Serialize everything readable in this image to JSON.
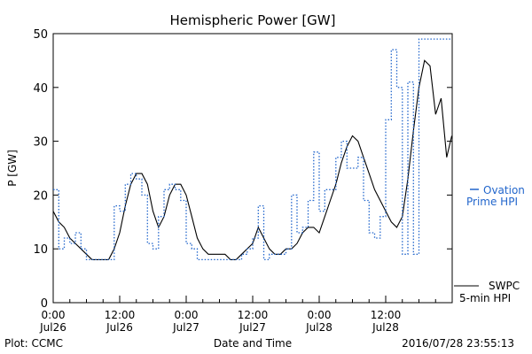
{
  "chart_data": {
    "type": "line",
    "title": "Hemispheric Power [GW]",
    "ylabel": "P [GW]",
    "xlabel": "Date and Time",
    "xlim": [
      "2016-07-26T00:00",
      "2016-07-28T23:55"
    ],
    "ylim": [
      0,
      50
    ],
    "y_ticks": [
      0,
      10,
      20,
      30,
      40,
      50
    ],
    "x_ticks": [
      {
        "time": "2016-07-26T00:00",
        "line1": "0:00",
        "line2": "Jul26"
      },
      {
        "time": "2016-07-26T12:00",
        "line1": "12:00",
        "line2": "Jul26"
      },
      {
        "time": "2016-07-27T00:00",
        "line1": "0:00",
        "line2": "Jul27"
      },
      {
        "time": "2016-07-27T12:00",
        "line1": "12:00",
        "line2": "Jul27"
      },
      {
        "time": "2016-07-28T00:00",
        "line1": "0:00",
        "line2": "Jul28"
      },
      {
        "time": "2016-07-28T12:00",
        "line1": "12:00",
        "line2": "Jul28"
      }
    ],
    "grid": false,
    "series": [
      {
        "name_line1": "SWPC",
        "name_line2": "5-min HPI",
        "style": "solid",
        "color": "#000000",
        "points": [
          [
            "2016-07-26T00:00",
            17
          ],
          [
            "2016-07-26T01:00",
            15
          ],
          [
            "2016-07-26T02:00",
            14
          ],
          [
            "2016-07-26T03:00",
            12
          ],
          [
            "2016-07-26T04:00",
            11
          ],
          [
            "2016-07-26T05:00",
            10
          ],
          [
            "2016-07-26T06:00",
            9
          ],
          [
            "2016-07-26T07:00",
            8
          ],
          [
            "2016-07-26T08:00",
            8
          ],
          [
            "2016-07-26T10:00",
            8
          ],
          [
            "2016-07-26T11:00",
            10
          ],
          [
            "2016-07-26T12:00",
            13
          ],
          [
            "2016-07-26T13:00",
            18
          ],
          [
            "2016-07-26T14:00",
            22
          ],
          [
            "2016-07-26T15:00",
            24
          ],
          [
            "2016-07-26T16:00",
            24
          ],
          [
            "2016-07-26T17:00",
            22
          ],
          [
            "2016-07-26T18:00",
            17
          ],
          [
            "2016-07-26T19:00",
            14
          ],
          [
            "2016-07-26T20:00",
            16
          ],
          [
            "2016-07-26T21:00",
            20
          ],
          [
            "2016-07-26T22:00",
            22
          ],
          [
            "2016-07-26T23:00",
            22
          ],
          [
            "2016-07-27T00:00",
            20
          ],
          [
            "2016-07-27T01:00",
            16
          ],
          [
            "2016-07-27T02:00",
            12
          ],
          [
            "2016-07-27T03:00",
            10
          ],
          [
            "2016-07-27T04:00",
            9
          ],
          [
            "2016-07-27T05:00",
            9
          ],
          [
            "2016-07-27T06:00",
            9
          ],
          [
            "2016-07-27T07:00",
            9
          ],
          [
            "2016-07-27T08:00",
            8
          ],
          [
            "2016-07-27T09:00",
            8
          ],
          [
            "2016-07-27T10:00",
            9
          ],
          [
            "2016-07-27T11:00",
            10
          ],
          [
            "2016-07-27T12:00",
            11
          ],
          [
            "2016-07-27T13:00",
            14
          ],
          [
            "2016-07-27T14:00",
            12
          ],
          [
            "2016-07-27T15:00",
            10
          ],
          [
            "2016-07-27T16:00",
            9
          ],
          [
            "2016-07-27T17:00",
            9
          ],
          [
            "2016-07-27T18:00",
            10
          ],
          [
            "2016-07-27T19:00",
            10
          ],
          [
            "2016-07-27T20:00",
            11
          ],
          [
            "2016-07-27T21:00",
            13
          ],
          [
            "2016-07-27T22:00",
            14
          ],
          [
            "2016-07-27T23:00",
            14
          ],
          [
            "2016-07-28T00:00",
            13
          ],
          [
            "2016-07-28T01:00",
            16
          ],
          [
            "2016-07-28T02:00",
            19
          ],
          [
            "2016-07-28T03:00",
            22
          ],
          [
            "2016-07-28T04:00",
            26
          ],
          [
            "2016-07-28T05:00",
            29
          ],
          [
            "2016-07-28T06:00",
            31
          ],
          [
            "2016-07-28T07:00",
            30
          ],
          [
            "2016-07-28T08:00",
            27
          ],
          [
            "2016-07-28T09:00",
            24
          ],
          [
            "2016-07-28T10:00",
            21
          ],
          [
            "2016-07-28T11:00",
            19
          ],
          [
            "2016-07-28T12:00",
            17
          ],
          [
            "2016-07-28T13:00",
            15
          ],
          [
            "2016-07-28T14:00",
            14
          ],
          [
            "2016-07-28T15:00",
            16
          ],
          [
            "2016-07-28T16:00",
            23
          ],
          [
            "2016-07-28T17:00",
            32
          ],
          [
            "2016-07-28T18:00",
            40
          ],
          [
            "2016-07-28T19:00",
            45
          ],
          [
            "2016-07-28T20:00",
            44
          ],
          [
            "2016-07-28T21:00",
            35
          ],
          [
            "2016-07-28T22:00",
            38
          ],
          [
            "2016-07-28T23:00",
            27
          ],
          [
            "2016-07-28T23:55",
            31
          ]
        ]
      },
      {
        "name_line1": "Ovation",
        "name_line2": "Prime HPI",
        "style": "dotted-step",
        "color": "#2266cc",
        "points": [
          [
            "2016-07-26T00:00",
            21
          ],
          [
            "2016-07-26T01:00",
            10
          ],
          [
            "2016-07-26T02:00",
            12
          ],
          [
            "2016-07-26T03:00",
            11
          ],
          [
            "2016-07-26T04:00",
            13
          ],
          [
            "2016-07-26T05:00",
            10
          ],
          [
            "2016-07-26T06:00",
            8
          ],
          [
            "2016-07-26T07:00",
            8
          ],
          [
            "2016-07-26T08:00",
            8
          ],
          [
            "2016-07-26T09:00",
            8
          ],
          [
            "2016-07-26T10:00",
            8
          ],
          [
            "2016-07-26T11:00",
            18
          ],
          [
            "2016-07-26T12:00",
            17
          ],
          [
            "2016-07-26T13:00",
            22
          ],
          [
            "2016-07-26T14:00",
            24
          ],
          [
            "2016-07-26T15:00",
            23
          ],
          [
            "2016-07-26T16:00",
            20
          ],
          [
            "2016-07-26T17:00",
            11
          ],
          [
            "2016-07-26T18:00",
            10
          ],
          [
            "2016-07-26T19:00",
            16
          ],
          [
            "2016-07-26T20:00",
            21
          ],
          [
            "2016-07-26T21:00",
            22
          ],
          [
            "2016-07-26T22:00",
            21
          ],
          [
            "2016-07-26T23:00",
            19
          ],
          [
            "2016-07-27T00:00",
            11
          ],
          [
            "2016-07-27T01:00",
            10
          ],
          [
            "2016-07-27T02:00",
            8
          ],
          [
            "2016-07-27T03:00",
            8
          ],
          [
            "2016-07-27T04:00",
            8
          ],
          [
            "2016-07-27T05:00",
            8
          ],
          [
            "2016-07-27T06:00",
            8
          ],
          [
            "2016-07-27T07:00",
            8
          ],
          [
            "2016-07-27T08:00",
            8
          ],
          [
            "2016-07-27T09:00",
            8
          ],
          [
            "2016-07-27T10:00",
            9
          ],
          [
            "2016-07-27T11:00",
            10
          ],
          [
            "2016-07-27T12:00",
            12
          ],
          [
            "2016-07-27T13:00",
            18
          ],
          [
            "2016-07-27T14:00",
            8
          ],
          [
            "2016-07-27T15:00",
            9
          ],
          [
            "2016-07-27T16:00",
            9
          ],
          [
            "2016-07-27T17:00",
            9
          ],
          [
            "2016-07-27T18:00",
            10
          ],
          [
            "2016-07-27T19:00",
            20
          ],
          [
            "2016-07-27T20:00",
            13
          ],
          [
            "2016-07-27T21:00",
            14
          ],
          [
            "2016-07-27T22:00",
            19
          ],
          [
            "2016-07-27T23:00",
            28
          ],
          [
            "2016-07-28T00:00",
            17
          ],
          [
            "2016-07-28T01:00",
            21
          ],
          [
            "2016-07-28T02:00",
            21
          ],
          [
            "2016-07-28T03:00",
            27
          ],
          [
            "2016-07-28T04:00",
            30
          ],
          [
            "2016-07-28T05:00",
            25
          ],
          [
            "2016-07-28T06:00",
            25
          ],
          [
            "2016-07-28T07:00",
            27
          ],
          [
            "2016-07-28T08:00",
            19
          ],
          [
            "2016-07-28T09:00",
            13
          ],
          [
            "2016-07-28T10:00",
            12
          ],
          [
            "2016-07-28T11:00",
            16
          ],
          [
            "2016-07-28T12:00",
            34
          ],
          [
            "2016-07-28T13:00",
            47
          ],
          [
            "2016-07-28T14:00",
            40
          ],
          [
            "2016-07-28T15:00",
            9
          ],
          [
            "2016-07-28T16:00",
            41
          ],
          [
            "2016-07-28T17:00",
            9
          ],
          [
            "2016-07-28T18:00",
            49
          ],
          [
            "2016-07-28T23:55",
            49
          ]
        ]
      }
    ]
  },
  "footer": {
    "left": "Plot: CCMC",
    "right": "2016/07/28 23:55:13"
  }
}
